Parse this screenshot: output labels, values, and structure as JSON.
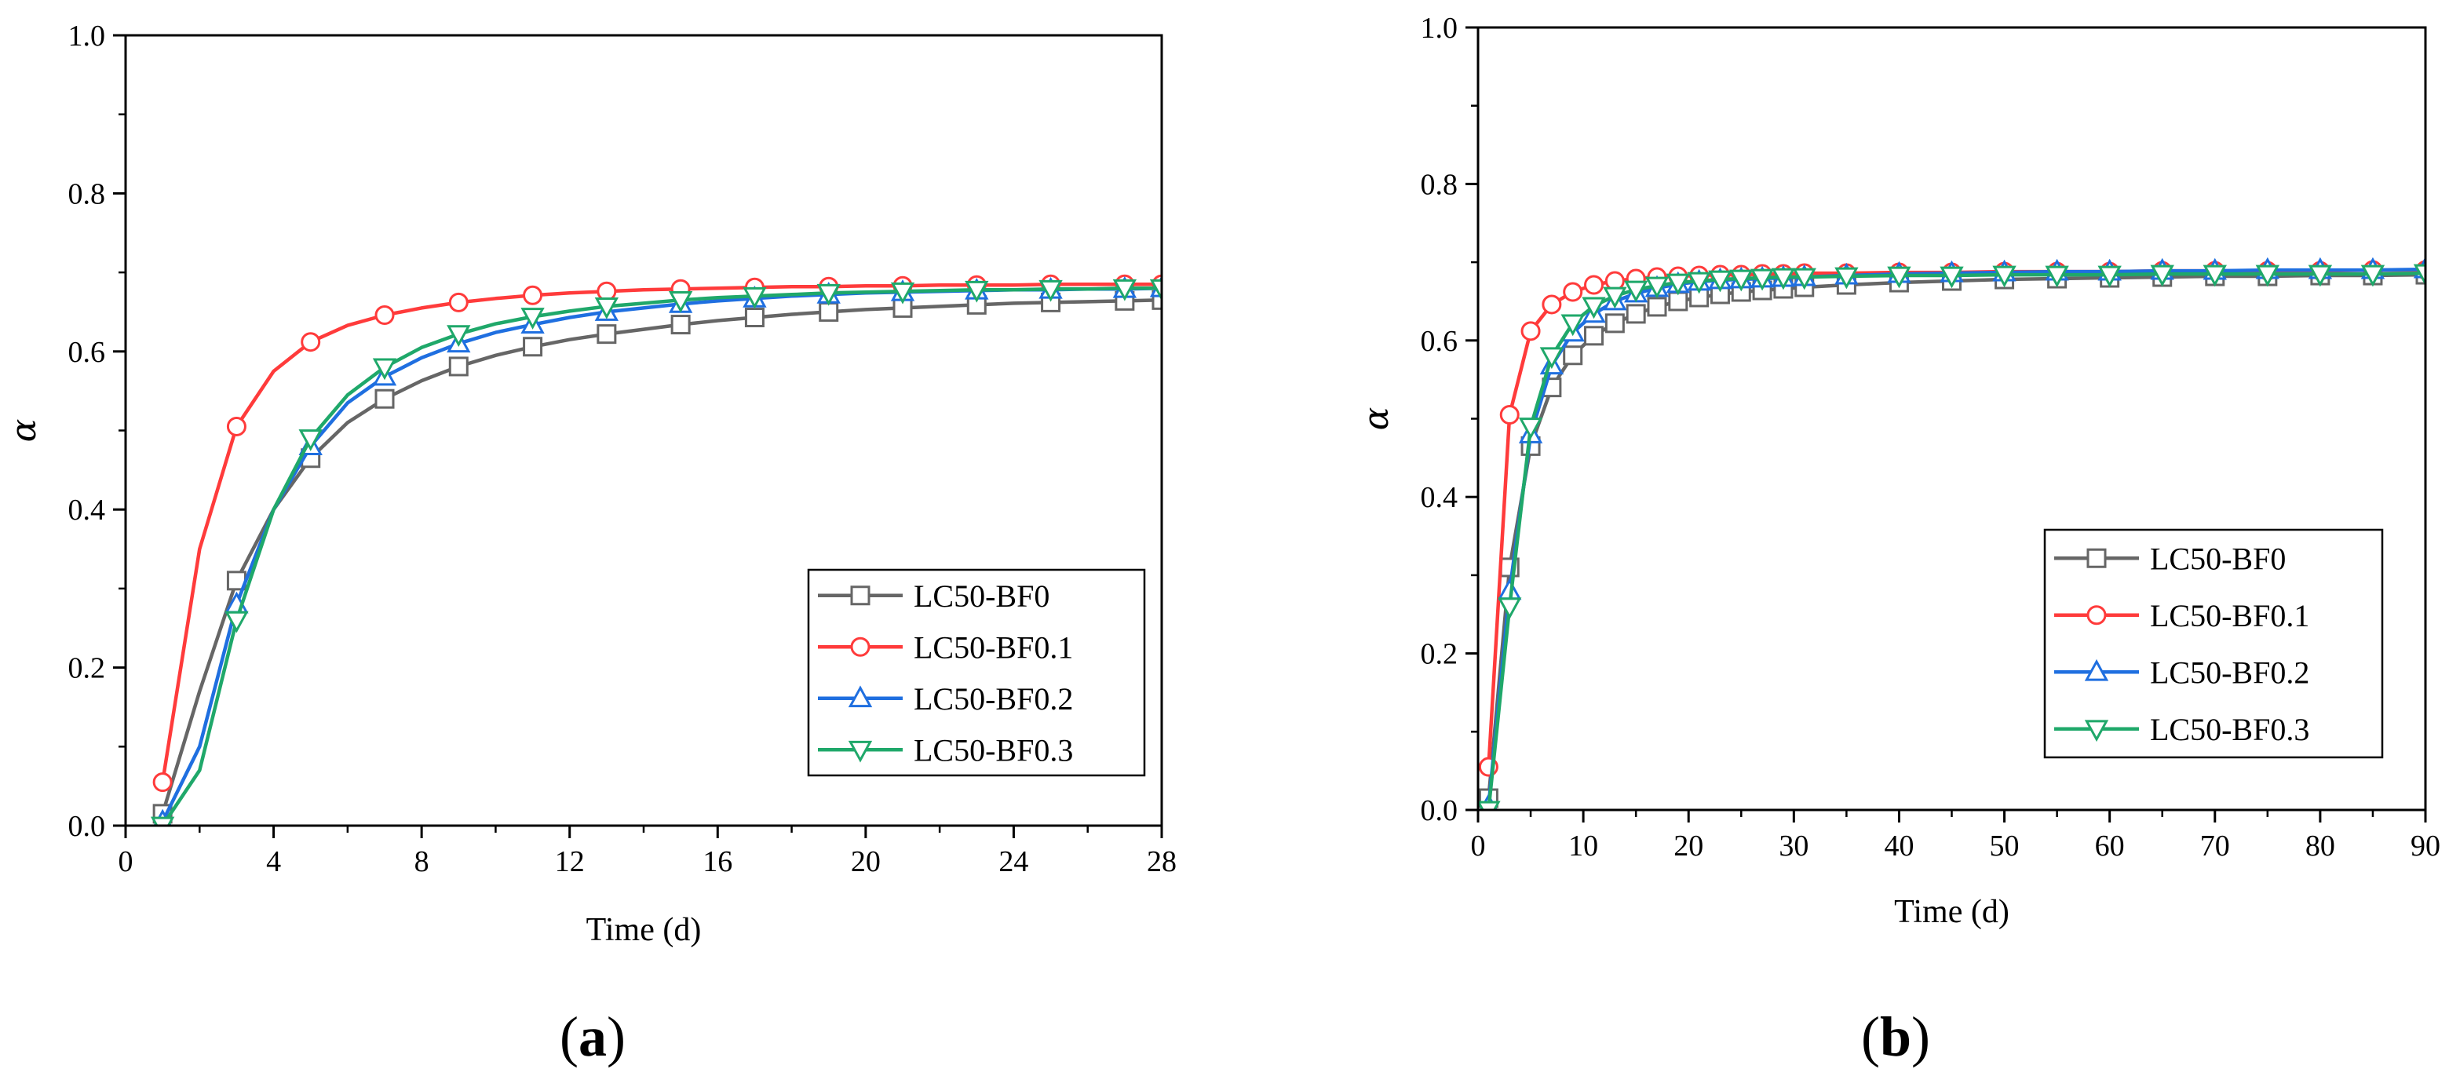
{
  "chart_data": [
    {
      "id": "a",
      "type": "line",
      "panel_label": "a",
      "xlabel": "Time (d)",
      "ylabel": "α",
      "xlim": [
        0,
        28
      ],
      "ylim": [
        0,
        1.0
      ],
      "xticks": [
        0,
        4,
        8,
        12,
        16,
        20,
        24,
        28
      ],
      "yticks": [
        0.0,
        0.2,
        0.4,
        0.6,
        0.8,
        1.0
      ],
      "ytick_labels": [
        "0.0",
        "0.2",
        "0.4",
        "0.6",
        "0.8",
        "1.0"
      ],
      "legend_position": "lower-right",
      "series": [
        {
          "name": "LC50-BF0",
          "color": "#666666",
          "marker": "square",
          "x": [
            1,
            2,
            3,
            4,
            5,
            6,
            7,
            8,
            9,
            10,
            11,
            12,
            13,
            14,
            15,
            16,
            17,
            18,
            19,
            20,
            21,
            22,
            23,
            24,
            25,
            26,
            27,
            28
          ],
          "y": [
            0.015,
            0.17,
            0.31,
            0.4,
            0.465,
            0.51,
            0.54,
            0.563,
            0.581,
            0.595,
            0.606,
            0.615,
            0.622,
            0.628,
            0.634,
            0.639,
            0.643,
            0.647,
            0.65,
            0.653,
            0.655,
            0.657,
            0.659,
            0.661,
            0.662,
            0.663,
            0.664,
            0.665
          ],
          "marker_x": [
            1,
            3,
            5,
            7,
            9,
            11,
            13,
            15,
            17,
            19,
            21,
            23,
            25,
            27,
            28
          ]
        },
        {
          "name": "LC50-BF0.1",
          "color": "#ff3b3b",
          "marker": "circle",
          "x": [
            1,
            2,
            3,
            4,
            5,
            6,
            7,
            8,
            9,
            10,
            11,
            12,
            13,
            14,
            15,
            16,
            17,
            18,
            19,
            20,
            21,
            22,
            23,
            24,
            25,
            26,
            27,
            28
          ],
          "y": [
            0.055,
            0.35,
            0.505,
            0.575,
            0.612,
            0.633,
            0.646,
            0.655,
            0.662,
            0.667,
            0.671,
            0.674,
            0.676,
            0.678,
            0.679,
            0.68,
            0.681,
            0.682,
            0.682,
            0.683,
            0.683,
            0.684,
            0.684,
            0.684,
            0.685,
            0.685,
            0.685,
            0.685
          ],
          "marker_x": [
            1,
            3,
            5,
            7,
            9,
            11,
            13,
            15,
            17,
            19,
            21,
            23,
            25,
            27,
            28
          ]
        },
        {
          "name": "LC50-BF0.2",
          "color": "#1f6fe0",
          "marker": "triangle-up",
          "x": [
            1,
            2,
            3,
            4,
            5,
            6,
            7,
            8,
            9,
            10,
            11,
            12,
            13,
            14,
            15,
            16,
            17,
            18,
            19,
            20,
            21,
            22,
            23,
            24,
            25,
            26,
            27,
            28
          ],
          "y": [
            0.005,
            0.1,
            0.28,
            0.4,
            0.48,
            0.535,
            0.568,
            0.592,
            0.61,
            0.624,
            0.634,
            0.643,
            0.65,
            0.655,
            0.66,
            0.664,
            0.667,
            0.67,
            0.672,
            0.674,
            0.675,
            0.676,
            0.677,
            0.678,
            0.678,
            0.679,
            0.679,
            0.68
          ],
          "marker_x": [
            1,
            3,
            5,
            7,
            9,
            11,
            13,
            15,
            17,
            19,
            21,
            23,
            25,
            27,
            28
          ]
        },
        {
          "name": "LC50-BF0.3",
          "color": "#1fa86a",
          "marker": "triangle-down",
          "x": [
            1,
            2,
            3,
            4,
            5,
            6,
            7,
            8,
            9,
            10,
            11,
            12,
            13,
            14,
            15,
            16,
            17,
            18,
            19,
            20,
            21,
            22,
            23,
            24,
            25,
            26,
            27,
            28
          ],
          "y": [
            0.0,
            0.07,
            0.26,
            0.4,
            0.49,
            0.545,
            0.58,
            0.605,
            0.622,
            0.635,
            0.644,
            0.651,
            0.657,
            0.661,
            0.665,
            0.668,
            0.67,
            0.672,
            0.674,
            0.675,
            0.676,
            0.677,
            0.678,
            0.678,
            0.679,
            0.679,
            0.68,
            0.68
          ],
          "marker_x": [
            1,
            3,
            5,
            7,
            9,
            11,
            13,
            15,
            17,
            19,
            21,
            23,
            25,
            27,
            28
          ]
        }
      ]
    },
    {
      "id": "b",
      "type": "line",
      "panel_label": "b",
      "xlabel": "Time (d)",
      "ylabel": "α",
      "xlim": [
        0,
        90
      ],
      "ylim": [
        0,
        1.0
      ],
      "xticks": [
        0,
        10,
        20,
        30,
        40,
        50,
        60,
        70,
        80,
        90
      ],
      "yticks": [
        0.0,
        0.2,
        0.4,
        0.6,
        0.8,
        1.0
      ],
      "ytick_labels": [
        "0.0",
        "0.2",
        "0.4",
        "0.6",
        "0.8",
        "1.0"
      ],
      "legend_position": "lower-right",
      "series": [
        {
          "name": "LC50-BF0",
          "color": "#666666",
          "marker": "square",
          "x": [
            1,
            3,
            5,
            7,
            9,
            11,
            13,
            15,
            17,
            19,
            21,
            23,
            25,
            27,
            29,
            31,
            35,
            40,
            45,
            50,
            55,
            60,
            65,
            70,
            75,
            80,
            85,
            90
          ],
          "y": [
            0.015,
            0.31,
            0.465,
            0.54,
            0.581,
            0.606,
            0.622,
            0.634,
            0.643,
            0.65,
            0.655,
            0.659,
            0.662,
            0.664,
            0.666,
            0.668,
            0.671,
            0.674,
            0.676,
            0.678,
            0.679,
            0.68,
            0.681,
            0.682,
            0.682,
            0.683,
            0.683,
            0.684
          ]
        },
        {
          "name": "LC50-BF0.1",
          "color": "#ff3b3b",
          "marker": "circle",
          "x": [
            1,
            3,
            5,
            7,
            9,
            11,
            13,
            15,
            17,
            19,
            21,
            23,
            25,
            27,
            29,
            31,
            35,
            40,
            45,
            50,
            55,
            60,
            65,
            70,
            75,
            80,
            85,
            90
          ],
          "y": [
            0.055,
            0.505,
            0.612,
            0.646,
            0.662,
            0.671,
            0.676,
            0.679,
            0.681,
            0.682,
            0.683,
            0.684,
            0.684,
            0.685,
            0.685,
            0.686,
            0.686,
            0.687,
            0.687,
            0.688,
            0.688,
            0.688,
            0.689,
            0.689,
            0.689,
            0.689,
            0.69,
            0.69
          ]
        },
        {
          "name": "LC50-BF0.2",
          "color": "#1f6fe0",
          "marker": "triangle-up",
          "x": [
            1,
            3,
            5,
            7,
            9,
            11,
            13,
            15,
            17,
            19,
            21,
            23,
            25,
            27,
            29,
            31,
            35,
            40,
            45,
            50,
            55,
            60,
            65,
            70,
            75,
            80,
            85,
            90
          ],
          "y": [
            0.005,
            0.28,
            0.48,
            0.568,
            0.61,
            0.634,
            0.65,
            0.66,
            0.667,
            0.672,
            0.675,
            0.677,
            0.678,
            0.679,
            0.68,
            0.681,
            0.683,
            0.685,
            0.686,
            0.687,
            0.688,
            0.688,
            0.689,
            0.689,
            0.69,
            0.69,
            0.69,
            0.691
          ]
        },
        {
          "name": "LC50-BF0.3",
          "color": "#1fa86a",
          "marker": "triangle-down",
          "x": [
            1,
            3,
            5,
            7,
            9,
            11,
            13,
            15,
            17,
            19,
            21,
            23,
            25,
            27,
            29,
            31,
            35,
            40,
            45,
            50,
            55,
            60,
            65,
            70,
            75,
            80,
            85,
            90
          ],
          "y": [
            0.0,
            0.26,
            0.49,
            0.58,
            0.622,
            0.644,
            0.657,
            0.665,
            0.67,
            0.674,
            0.676,
            0.678,
            0.679,
            0.68,
            0.681,
            0.681,
            0.682,
            0.683,
            0.683,
            0.684,
            0.684,
            0.684,
            0.685,
            0.685,
            0.685,
            0.685,
            0.685,
            0.686
          ]
        }
      ]
    }
  ]
}
